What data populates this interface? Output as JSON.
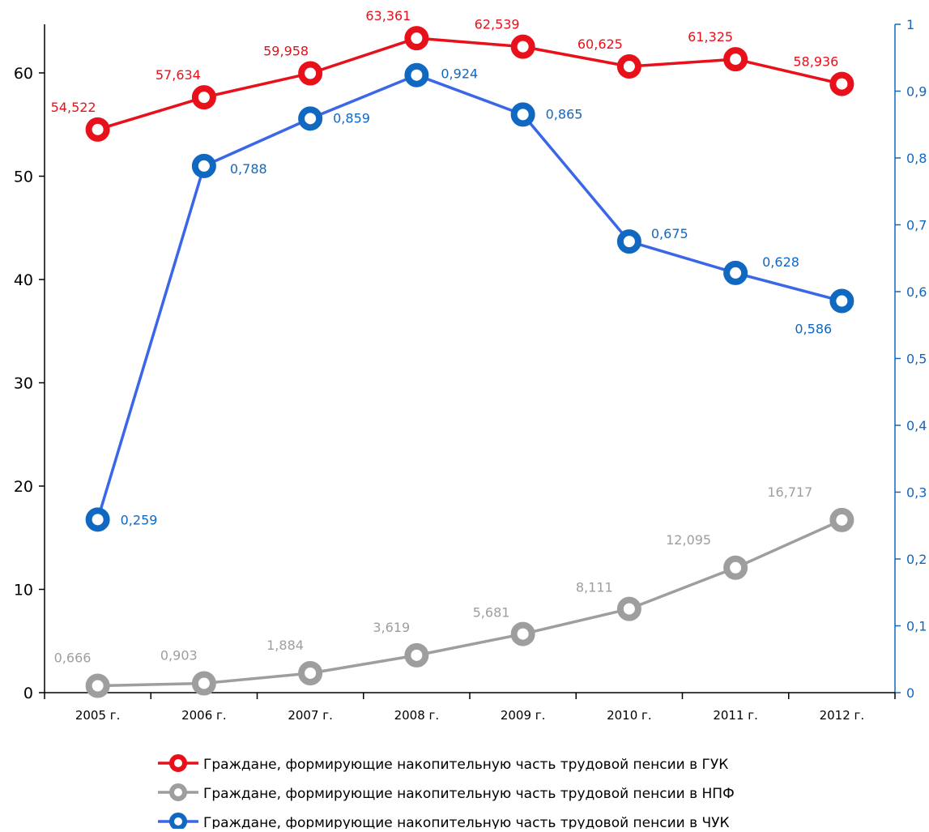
{
  "chart_data": {
    "type": "line",
    "title": "",
    "xlabel": "",
    "ylabel": "",
    "categories": [
      "2005 г.",
      "2006 г.",
      "2007 г.",
      "2008 г.",
      "2009 г.",
      "2010 г.",
      "2011 г.",
      "2012 г."
    ],
    "y_left": {
      "min": 0,
      "max": 65,
      "ticks": [
        "0",
        "10",
        "20",
        "30",
        "40",
        "50",
        "60"
      ]
    },
    "y_right": {
      "min": 0,
      "max": 1,
      "ticks": [
        "0",
        "0,1",
        "0,2",
        "0,3",
        "0,4",
        "0,5",
        "0,6",
        "0,7",
        "0,8",
        "0,9",
        "1"
      ]
    },
    "grid": false,
    "legend_position": "bottom",
    "series": [
      {
        "name": "Граждане, формирующие накопительную часть трудовой пенсии в ГУК",
        "axis": "left",
        "color": "#e8101a",
        "values": [
          54.522,
          57.634,
          59.958,
          63.361,
          62.539,
          60.625,
          61.325,
          58.936
        ],
        "labels": [
          "54,522",
          "57,634",
          "59,958",
          "63,361",
          "62,539",
          "60,625",
          "61,325",
          "58,936"
        ]
      },
      {
        "name": "Граждане, формирующие накопительную часть трудовой пенсии в НПФ",
        "axis": "left",
        "color": "#9e9e9e",
        "values": [
          0.666,
          0.903,
          1.884,
          3.619,
          5.681,
          8.111,
          12.095,
          16.717
        ],
        "labels": [
          "0,666",
          "0,903",
          "1,884",
          "3,619",
          "5,681",
          "8,111",
          "12,095",
          "16,717"
        ]
      },
      {
        "name": "Граждане, формирующие накопительную часть трудовой пенсии в ЧУК",
        "axis": "right",
        "color": "#1068c0",
        "line_color": "#3a66e8",
        "values": [
          0.259,
          0.788,
          0.859,
          0.924,
          0.865,
          0.675,
          0.628,
          0.586
        ],
        "labels": [
          "0,259",
          "0,788",
          "0,859",
          "0,924",
          "0,865",
          "0,675",
          "0,628",
          "0,586"
        ]
      }
    ]
  }
}
